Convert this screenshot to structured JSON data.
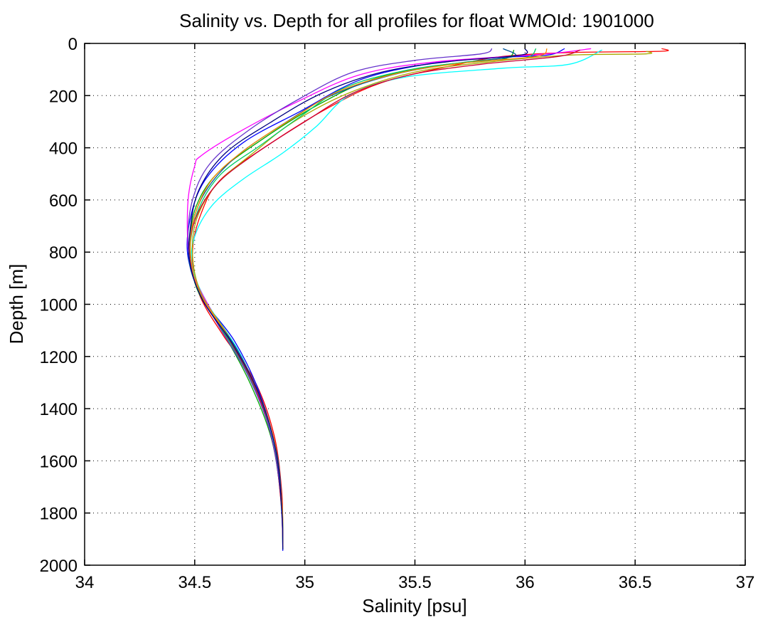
{
  "chart_data": {
    "type": "line",
    "title": "Salinity vs. Depth for all profiles for float WMOId: 1901000",
    "xlabel": "Salinity [psu]",
    "ylabel": "Depth [m]",
    "xlim": [
      34,
      37
    ],
    "ylim": [
      0,
      2000
    ],
    "y_reversed": true,
    "grid": true,
    "legend": "none",
    "x_ticks": [
      "34",
      "34.5",
      "35",
      "35.5",
      "36",
      "36.5",
      "37"
    ],
    "y_ticks": [
      "0",
      "200",
      "400",
      "600",
      "800",
      "1000",
      "1200",
      "1400",
      "1600",
      "1800",
      "2000"
    ],
    "x_tick_values": [
      34,
      34.5,
      35,
      35.5,
      36,
      36.5,
      37
    ],
    "y_tick_values": [
      0,
      200,
      400,
      600,
      800,
      1000,
      1200,
      1400,
      1600,
      1800,
      2000
    ],
    "series": [
      {
        "color": "#ff0000",
        "points": [
          [
            36.62,
            20
          ],
          [
            36.62,
            30
          ],
          [
            36.2,
            35
          ],
          [
            35.9,
            50
          ],
          [
            35.7,
            80
          ],
          [
            35.35,
            150
          ],
          [
            35.1,
            250
          ],
          [
            34.85,
            380
          ],
          [
            34.62,
            520
          ],
          [
            34.53,
            650
          ],
          [
            34.49,
            800
          ],
          [
            34.52,
            960
          ],
          [
            34.63,
            1120
          ],
          [
            34.77,
            1290
          ],
          [
            34.86,
            1500
          ],
          [
            34.895,
            1720
          ],
          [
            34.9,
            1900
          ]
        ]
      },
      {
        "color": "#0000ff",
        "points": [
          [
            36.18,
            20
          ],
          [
            36.1,
            45
          ],
          [
            35.85,
            55
          ],
          [
            35.55,
            80
          ],
          [
            35.25,
            140
          ],
          [
            34.98,
            260
          ],
          [
            34.72,
            380
          ],
          [
            34.55,
            520
          ],
          [
            34.48,
            670
          ],
          [
            34.47,
            820
          ],
          [
            34.54,
            980
          ],
          [
            34.68,
            1140
          ],
          [
            34.79,
            1330
          ],
          [
            34.87,
            1560
          ],
          [
            34.895,
            1800
          ],
          [
            34.9,
            1945
          ]
        ]
      },
      {
        "color": "#00ffff",
        "points": [
          [
            36.35,
            25
          ],
          [
            36.2,
            80
          ],
          [
            35.9,
            95
          ],
          [
            35.45,
            130
          ],
          [
            35.2,
            200
          ],
          [
            35.05,
            320
          ],
          [
            34.9,
            420
          ],
          [
            34.72,
            520
          ],
          [
            34.58,
            620
          ],
          [
            34.5,
            740
          ],
          [
            34.49,
            860
          ],
          [
            34.56,
            1000
          ],
          [
            34.7,
            1180
          ],
          [
            34.8,
            1370
          ],
          [
            34.87,
            1580
          ],
          [
            34.895,
            1800
          ],
          [
            34.9,
            1920
          ]
        ]
      },
      {
        "color": "#00aa00",
        "points": [
          [
            35.95,
            25
          ],
          [
            35.9,
            60
          ],
          [
            35.6,
            85
          ],
          [
            35.3,
            140
          ],
          [
            35.05,
            240
          ],
          [
            34.82,
            360
          ],
          [
            34.6,
            500
          ],
          [
            34.5,
            640
          ],
          [
            34.48,
            790
          ],
          [
            34.51,
            940
          ],
          [
            34.63,
            1110
          ],
          [
            34.75,
            1300
          ],
          [
            34.85,
            1520
          ],
          [
            34.893,
            1760
          ],
          [
            34.9,
            1930
          ]
        ]
      },
      {
        "color": "#ff00ff",
        "points": [
          [
            36.3,
            20
          ],
          [
            36.1,
            40
          ],
          [
            35.6,
            70
          ],
          [
            35.25,
            120
          ],
          [
            34.95,
            230
          ],
          [
            34.7,
            340
          ],
          [
            34.53,
            430
          ],
          [
            34.5,
            470
          ],
          [
            34.47,
            600
          ],
          [
            34.47,
            780
          ],
          [
            34.5,
            900
          ],
          [
            34.6,
            1060
          ],
          [
            34.73,
            1250
          ],
          [
            34.83,
            1450
          ],
          [
            34.885,
            1680
          ],
          [
            34.9,
            1900
          ]
        ]
      },
      {
        "color": "#aaaa00",
        "points": [
          [
            36.55,
            30
          ],
          [
            36.55,
            40
          ],
          [
            36.2,
            45
          ],
          [
            35.85,
            70
          ],
          [
            35.5,
            110
          ],
          [
            35.2,
            190
          ],
          [
            34.95,
            300
          ],
          [
            34.78,
            410
          ],
          [
            34.6,
            540
          ],
          [
            34.51,
            670
          ],
          [
            34.49,
            810
          ],
          [
            34.53,
            960
          ],
          [
            34.66,
            1130
          ],
          [
            34.78,
            1320
          ],
          [
            34.865,
            1540
          ],
          [
            34.897,
            1780
          ],
          [
            34.9,
            1935
          ]
        ]
      },
      {
        "color": "#005599",
        "points": [
          [
            35.9,
            20
          ],
          [
            35.95,
            50
          ],
          [
            35.7,
            75
          ],
          [
            35.4,
            120
          ],
          [
            35.12,
            200
          ],
          [
            34.9,
            310
          ],
          [
            34.68,
            440
          ],
          [
            34.54,
            580
          ],
          [
            34.48,
            730
          ],
          [
            34.48,
            860
          ],
          [
            34.55,
            1000
          ],
          [
            34.69,
            1170
          ],
          [
            34.8,
            1360
          ],
          [
            34.875,
            1580
          ],
          [
            34.898,
            1820
          ],
          [
            34.9,
            1940
          ]
        ]
      },
      {
        "color": "#00cc66",
        "points": [
          [
            36.05,
            20
          ],
          [
            36.0,
            55
          ],
          [
            35.75,
            70
          ],
          [
            35.45,
            105
          ],
          [
            35.18,
            170
          ],
          [
            34.98,
            280
          ],
          [
            34.8,
            390
          ],
          [
            34.62,
            500
          ],
          [
            34.52,
            630
          ],
          [
            34.48,
            780
          ],
          [
            34.51,
            930
          ],
          [
            34.62,
            1090
          ],
          [
            34.75,
            1280
          ],
          [
            34.85,
            1490
          ],
          [
            34.89,
            1720
          ],
          [
            34.9,
            1910
          ]
        ]
      },
      {
        "color": "#cc0033",
        "points": [
          [
            36.25,
            25
          ],
          [
            36.15,
            50
          ],
          [
            35.8,
            80
          ],
          [
            35.48,
            120
          ],
          [
            35.22,
            190
          ],
          [
            35.0,
            300
          ],
          [
            34.78,
            420
          ],
          [
            34.6,
            540
          ],
          [
            34.5,
            680
          ],
          [
            34.48,
            820
          ],
          [
            34.53,
            970
          ],
          [
            34.66,
            1140
          ],
          [
            34.78,
            1330
          ],
          [
            34.86,
            1550
          ],
          [
            34.895,
            1790
          ],
          [
            34.9,
            1930
          ]
        ]
      },
      {
        "color": "#6633cc",
        "points": [
          [
            35.85,
            20
          ],
          [
            35.8,
            40
          ],
          [
            35.5,
            65
          ],
          [
            35.22,
            110
          ],
          [
            34.98,
            210
          ],
          [
            34.75,
            330
          ],
          [
            34.57,
            460
          ],
          [
            34.49,
            600
          ],
          [
            34.47,
            760
          ],
          [
            34.5,
            910
          ],
          [
            34.6,
            1070
          ],
          [
            34.74,
            1270
          ],
          [
            34.84,
            1480
          ],
          [
            34.888,
            1710
          ],
          [
            34.9,
            1900
          ]
        ]
      },
      {
        "color": "#ff8800",
        "points": [
          [
            36.1,
            20
          ],
          [
            36.05,
            50
          ],
          [
            35.72,
            75
          ],
          [
            35.42,
            115
          ],
          [
            35.15,
            185
          ],
          [
            34.94,
            290
          ],
          [
            34.74,
            400
          ],
          [
            34.58,
            520
          ],
          [
            34.5,
            660
          ],
          [
            34.48,
            800
          ],
          [
            34.52,
            950
          ],
          [
            34.64,
            1110
          ],
          [
            34.77,
            1300
          ],
          [
            34.86,
            1520
          ],
          [
            34.894,
            1760
          ],
          [
            34.9,
            1925
          ]
        ]
      },
      {
        "color": "#000080",
        "points": [
          [
            36.0,
            20
          ],
          [
            35.98,
            45
          ],
          [
            35.65,
            70
          ],
          [
            35.35,
            110
          ],
          [
            35.08,
            190
          ],
          [
            34.85,
            300
          ],
          [
            34.64,
            420
          ],
          [
            34.52,
            560
          ],
          [
            34.48,
            710
          ],
          [
            34.48,
            850
          ],
          [
            34.54,
            990
          ],
          [
            34.67,
            1150
          ],
          [
            34.79,
            1340
          ],
          [
            34.868,
            1560
          ],
          [
            34.896,
            1800
          ],
          [
            34.9,
            1940
          ]
        ]
      }
    ]
  }
}
